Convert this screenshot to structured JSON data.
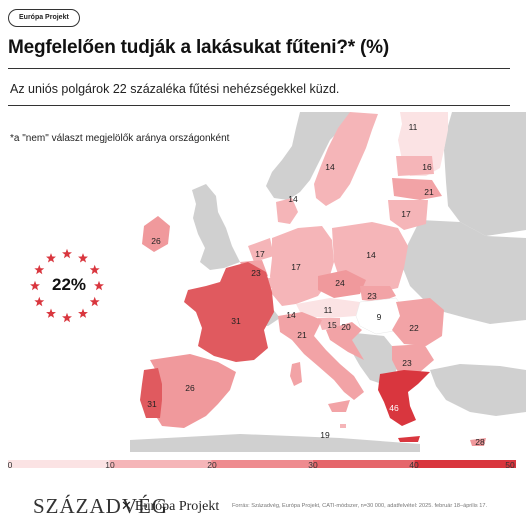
{
  "tag": "Európa Projekt",
  "title": "Megfelelően tudják a lakásukat fűteni?* (%)",
  "subtitle": "Az uniós polgárok 22 százaléka fűtési nehézségekkel küzd.",
  "note": "*a \"nem\" választ megjelölők aránya országonként",
  "eu_average": "22%",
  "map_data": {
    "type": "choropleth",
    "region": "Európai Unió",
    "colors": {
      "non_eu": "#d0d0d0",
      "eu_background": "#fbe3e4",
      "sea": "#ffffff",
      "accent": "#d9363e"
    },
    "scale": {
      "min": 0,
      "max": 50,
      "ticks": [
        "0",
        "10",
        "20",
        "30",
        "40",
        "50"
      ],
      "colors": [
        "#fbe3e4",
        "#f5b5b8",
        "#ee8b8f",
        "#e5666b",
        "#d9363e"
      ]
    },
    "countries": [
      {
        "name": "Finnország",
        "value": 11
      },
      {
        "name": "Svédország",
        "value": 14
      },
      {
        "name": "Dánia",
        "value": 14
      },
      {
        "name": "Észtország",
        "value": 16
      },
      {
        "name": "Lettország",
        "value": 21
      },
      {
        "name": "Litvánia",
        "value": 17
      },
      {
        "name": "Írország",
        "value": 26
      },
      {
        "name": "Hollandia",
        "value": 17
      },
      {
        "name": "Belgium",
        "value": 23
      },
      {
        "name": "Luxemburg",
        "value": 14
      },
      {
        "name": "Németország",
        "value": 17
      },
      {
        "name": "Lengyelország",
        "value": 14
      },
      {
        "name": "Csehország",
        "value": 24
      },
      {
        "name": "Szlovákia",
        "value": 23
      },
      {
        "name": "Ausztria",
        "value": 11
      },
      {
        "name": "Szlovénia",
        "value": 15
      },
      {
        "name": "Horvátország",
        "value": 20
      },
      {
        "name": "Magyarország",
        "value": 9
      },
      {
        "name": "Románia",
        "value": 22
      },
      {
        "name": "Bulgária",
        "value": 23
      },
      {
        "name": "Franciaország",
        "value": 31
      },
      {
        "name": "Olaszország",
        "value": 21
      },
      {
        "name": "Spanyolország",
        "value": 26
      },
      {
        "name": "Portugália",
        "value": 31
      },
      {
        "name": "Görögország",
        "value": 46
      },
      {
        "name": "Málta",
        "value": 19
      },
      {
        "name": "Ciprus",
        "value": 28
      }
    ]
  },
  "footer": {
    "logo_szazadveg": "SZÁZADVÉG",
    "logo_europa": "Európa Projekt",
    "source": "Forrás: Századvég, Európa Projekt, CATI-módszer, n=30 000, adatfelvétel: 2025. február 18–április 17."
  }
}
